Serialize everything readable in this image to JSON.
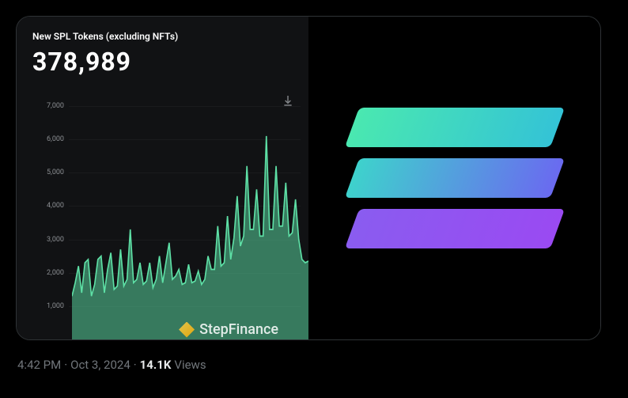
{
  "chart": {
    "title": "New SPL Tokens (excluding NFTs)",
    "value": "378,989",
    "type": "area",
    "ylim": [
      0,
      7000
    ],
    "yticks": [
      1000,
      2000,
      3000,
      4000,
      5000,
      6000,
      7000
    ],
    "ytick_labels": [
      "1,000",
      "2,000",
      "3,000",
      "4,000",
      "5,000",
      "6,000",
      "7,000"
    ],
    "stroke_color": "#5ee0a6",
    "fill_color": "#57cf9a",
    "fill_opacity": 0.55,
    "background_color": "#111214",
    "tick_label_color": "#8a8d91",
    "grid_color": "rgba(255,255,255,0.04)",
    "series": [
      1300,
      1700,
      2200,
      1400,
      2300,
      2400,
      1300,
      1650,
      2400,
      2500,
      1400,
      2100,
      2600,
      1500,
      1600,
      2700,
      1600,
      1800,
      3300,
      1700,
      1800,
      2300,
      1650,
      1750,
      2300,
      1550,
      1800,
      2500,
      1700,
      2300,
      2900,
      1800,
      1900,
      2100,
      1650,
      1700,
      2250,
      1700,
      1750,
      2050,
      1650,
      1800,
      2500,
      2100,
      2100,
      3400,
      2200,
      2300,
      3700,
      2400,
      3050,
      4300,
      2800,
      3100,
      5200,
      3300,
      3300,
      4500,
      3100,
      3100,
      6100,
      3300,
      3300,
      5200,
      3400,
      3400,
      4700,
      3100,
      3200,
      4200,
      3000,
      2400,
      2300,
      2350
    ],
    "watermark": "StepFinance"
  },
  "logo": {
    "bars": [
      {
        "gradient": [
          "#4ae8b0",
          "#34c3d6"
        ]
      },
      {
        "gradient": [
          "#3ed2cc",
          "#6a6af0"
        ]
      },
      {
        "gradient": [
          "#8a5cf0",
          "#9a4af2"
        ]
      }
    ]
  },
  "meta": {
    "time": "4:42 PM",
    "date": "Oct 3, 2024",
    "views_count": "14.1K",
    "views_label": "Views"
  },
  "icons": {
    "download": "download"
  }
}
